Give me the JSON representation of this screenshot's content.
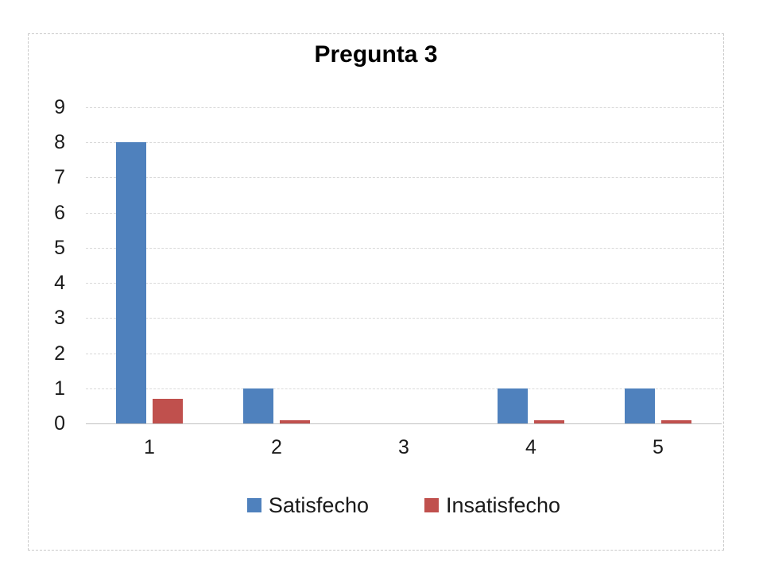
{
  "chart_data": {
    "type": "bar",
    "title": "Pregunta 3",
    "categories": [
      "1",
      "2",
      "3",
      "4",
      "5"
    ],
    "series": [
      {
        "name": "Satisfecho",
        "color": "#4F81BD",
        "values": [
          8,
          1,
          0,
          1,
          1
        ]
      },
      {
        "name": "Insatisfecho",
        "color": "#C0504D",
        "values": [
          0.7,
          0.1,
          0,
          0.1,
          0.1
        ]
      }
    ],
    "xlabel": "",
    "ylabel": "",
    "ylim": [
      0,
      9
    ],
    "yticks": [
      "0",
      "1",
      "2",
      "3",
      "4",
      "5",
      "6",
      "7",
      "8",
      "9"
    ],
    "grid": true,
    "gridline_style": "dashed",
    "legend_position": "bottom",
    "colors": {
      "grid": "#d9d9d9",
      "axis_line": "#c0c0c0",
      "frame_border": "#c9c9c9",
      "text": "#1a1a1a",
      "background": "#ffffff"
    }
  }
}
